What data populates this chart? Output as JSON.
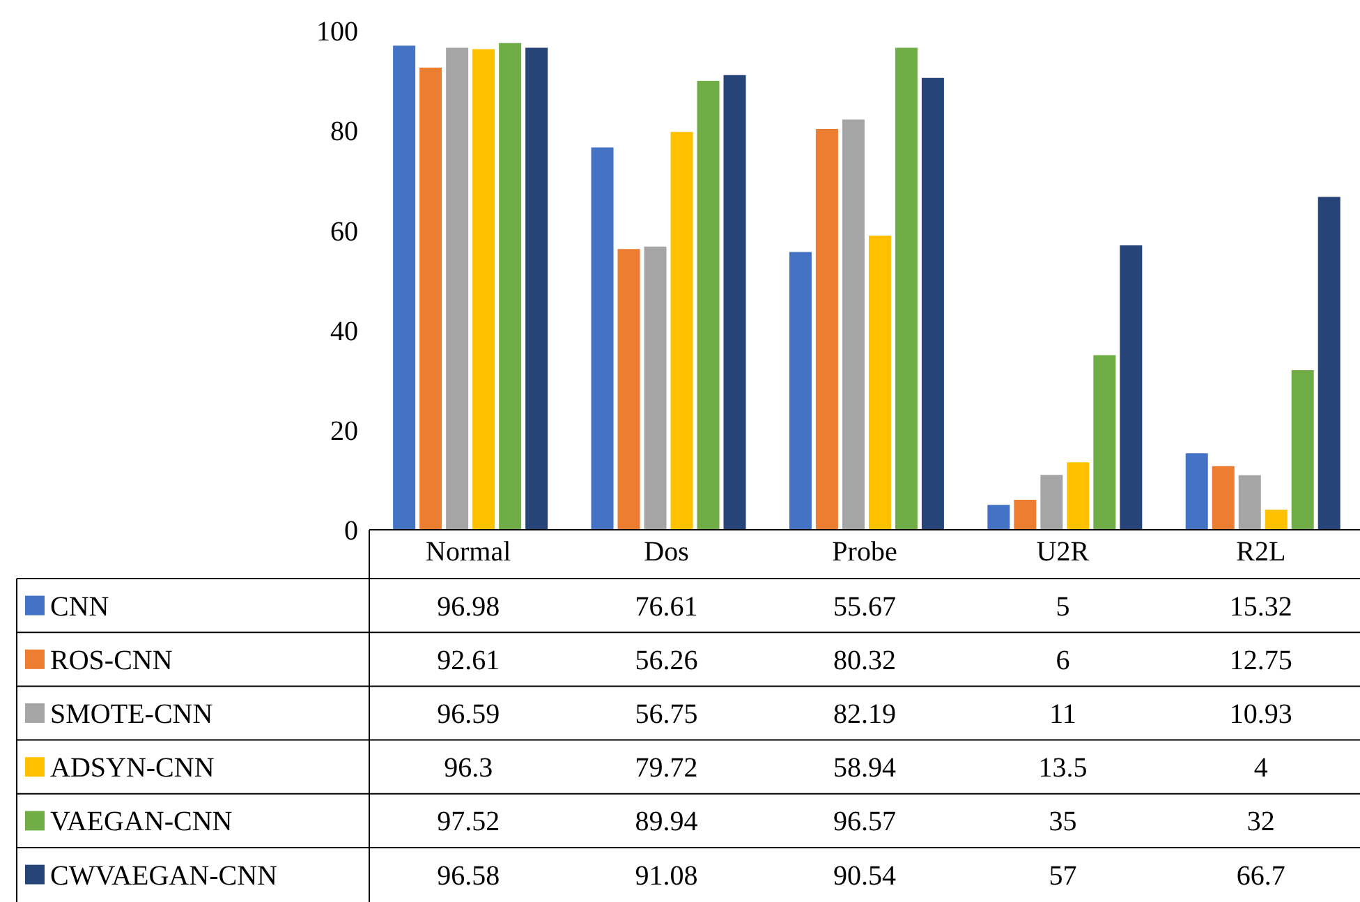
{
  "chart_data": {
    "type": "bar",
    "categories": [
      "Normal",
      "Dos",
      "Probe",
      "U2R",
      "R2L"
    ],
    "series": [
      {
        "name": "CNN",
        "color": "#4472c4",
        "values": [
          96.98,
          76.61,
          55.67,
          5,
          15.32
        ]
      },
      {
        "name": "ROS-CNN",
        "color": "#ed7d31",
        "values": [
          92.61,
          56.26,
          80.32,
          6,
          12.75
        ]
      },
      {
        "name": "SMOTE-CNN",
        "color": "#a5a5a5",
        "values": [
          96.59,
          56.75,
          82.19,
          11,
          10.93
        ]
      },
      {
        "name": "ADSYN-CNN",
        "color": "#ffc000",
        "values": [
          96.3,
          79.72,
          58.94,
          13.5,
          4
        ]
      },
      {
        "name": "VAEGAN-CNN",
        "color": "#70ad47",
        "values": [
          97.52,
          89.94,
          96.57,
          35,
          32
        ]
      },
      {
        "name": "CWVAEGAN-CNN",
        "color": "#264478",
        "values": [
          96.58,
          91.08,
          90.54,
          57,
          66.7
        ]
      }
    ],
    "ylim": [
      0,
      100
    ],
    "yticks": [
      0,
      20,
      40,
      60,
      80,
      100
    ],
    "legend": "bottom",
    "data_labels": true
  }
}
